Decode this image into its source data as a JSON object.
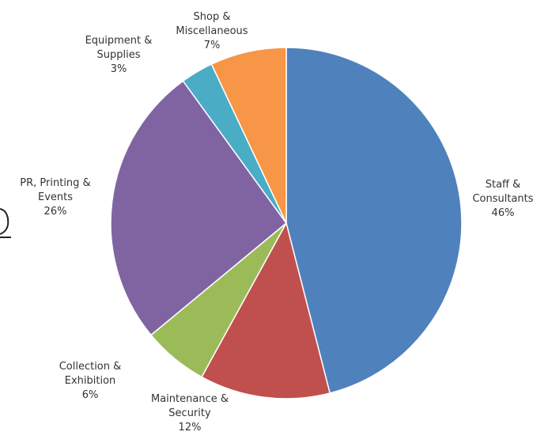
{
  "chart_data": {
    "type": "pie",
    "title": "",
    "categories": [
      "Staff & Consultants",
      "Maintenance & Security",
      "Collection & Exhibition",
      "PR, Printing & Events",
      "Equipment & Supplies",
      "Shop & Miscellaneous"
    ],
    "values": [
      46,
      12,
      6,
      26,
      3,
      7
    ],
    "value_labels": [
      "46%",
      "12%",
      "6%",
      "26%",
      "3%",
      "7%"
    ],
    "colors": [
      "#4f81bd",
      "#c0504d",
      "#9bbb59",
      "#8064a2",
      "#4bacc6",
      "#f79646"
    ],
    "label_lines": [
      [
        "Staff &",
        "Consultants"
      ],
      [
        "Maintenance &",
        "Security"
      ],
      [
        "Collection &",
        "Exhibition"
      ],
      [
        "PR, Printing &",
        "Events"
      ],
      [
        "Equipment &",
        "Supplies"
      ],
      [
        "Shop &",
        "Miscellaneous"
      ]
    ],
    "start_angle": "12 o'clock",
    "direction": "clockwise",
    "legend": "none (category labels outside slices)"
  }
}
